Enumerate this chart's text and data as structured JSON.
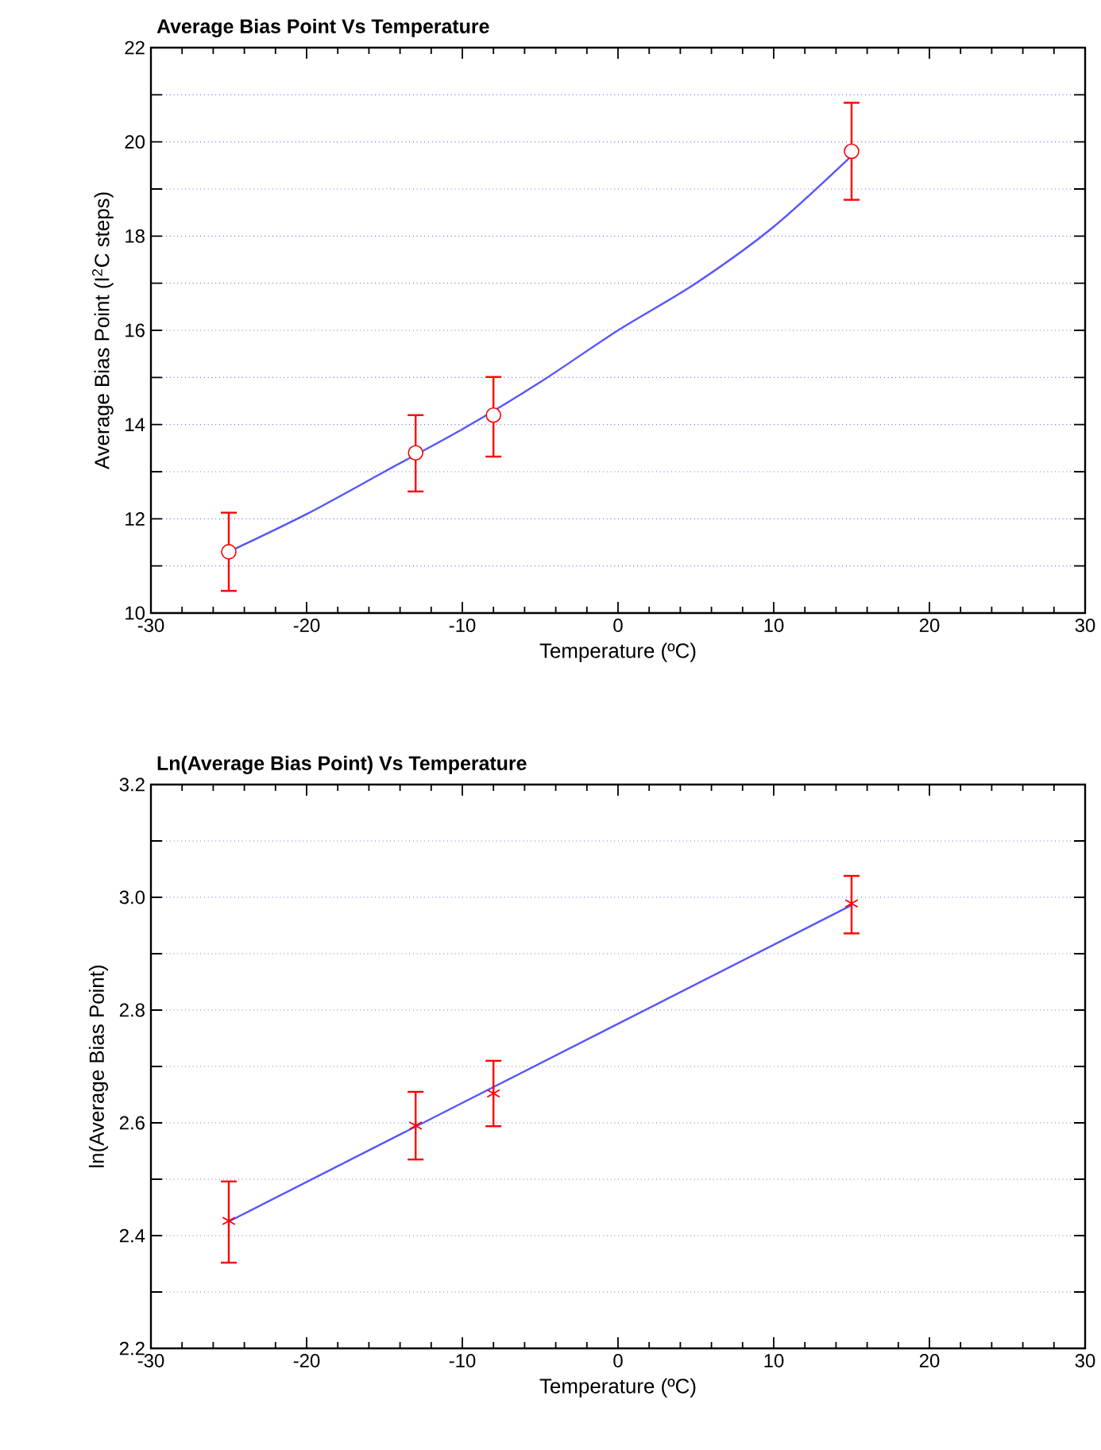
{
  "chart_data": [
    {
      "type": "scatter",
      "title": "Average Bias Point Vs Temperature",
      "xlabel": "Temperature (ºC)",
      "ylabel": "Average Bias Point (I$^{2}$C steps)",
      "xlim": [
        -30,
        30
      ],
      "xticks": [
        -30,
        -20,
        -10,
        0,
        10,
        20,
        30
      ],
      "ylim": [
        10,
        22
      ],
      "yticks": [
        10,
        {
          "value": 11,
          "label": null
        },
        12,
        {
          "value": 13,
          "label": null
        },
        14,
        {
          "value": 15,
          "label": null
        },
        16,
        {
          "value": 17,
          "label": null
        },
        18,
        {
          "value": 19,
          "label": null
        },
        20,
        {
          "value": 21,
          "label": null
        },
        22
      ],
      "grid": "y",
      "series": [
        {
          "type": "line",
          "color": "#5555ff",
          "marker": "none",
          "line_style": "solid",
          "x": [
            -25,
            -20,
            -15,
            -10,
            -5,
            0,
            5,
            10,
            15
          ],
          "values": [
            11.3,
            12.1,
            13.0,
            13.9,
            14.9,
            16.0,
            17.0,
            18.2,
            19.7
          ]
        },
        {
          "type": "scatter",
          "color": "#ff0000",
          "marker": "circle",
          "x": [
            -25,
            -13,
            -8,
            15
          ],
          "values": [
            11.3,
            13.4,
            14.2,
            19.8
          ],
          "errors": [
            [
              10.47,
              12.13
            ],
            [
              12.58,
              14.2
            ],
            [
              13.32,
              15.01
            ],
            [
              18.77,
              20.83
            ]
          ]
        }
      ]
    },
    {
      "type": "scatter",
      "title": "Ln(Average Bias Point) Vs Temperature",
      "xlabel": "Temperature (ºC)",
      "ylabel": "ln(Average Bias Point)",
      "xlim": [
        -30,
        30
      ],
      "xticks": [
        -30,
        -20,
        -10,
        0,
        10,
        20,
        30
      ],
      "ylim": [
        2.2,
        3.2
      ],
      "yticks": [
        2.2,
        {
          "value": 2.3,
          "label": null
        },
        2.4,
        {
          "value": 2.5,
          "label": null
        },
        2.6,
        {
          "value": 2.7,
          "label": null
        },
        2.8,
        {
          "value": 2.9,
          "label": null
        },
        {
          "value": 3.0,
          "label": "3.0"
        },
        {
          "value": 3.1,
          "label": null
        },
        3.2
      ],
      "grid": "y",
      "series": [
        {
          "type": "line",
          "color": "#5555ff",
          "marker": "none",
          "line_style": "solid",
          "x": [
            -25,
            15
          ],
          "values": [
            2.425,
            2.986
          ]
        },
        {
          "type": "scatter",
          "color": "#ff0000",
          "marker": "cross",
          "x": [
            -25,
            -13,
            -8,
            15
          ],
          "values": [
            2.426,
            2.595,
            2.652,
            2.989
          ],
          "errors": [
            [
              2.352,
              2.496
            ],
            [
              2.535,
              2.655
            ],
            [
              2.594,
              2.71
            ],
            [
              2.936,
              3.038
            ]
          ]
        }
      ]
    }
  ]
}
